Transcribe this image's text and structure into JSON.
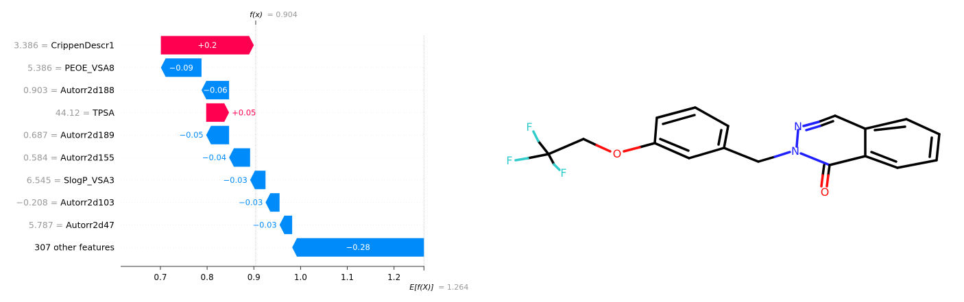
{
  "chart_data": {
    "type": "waterfall",
    "fx_label": "f(x)",
    "fx_value_text": "= 0.904",
    "fx": 0.904,
    "ex_label": "E[f(X)]",
    "ex_value_text": "= 1.264",
    "ex": 1.264,
    "xlim": [
      0.615,
      1.265
    ],
    "xticks": [
      {
        "value": 0.7,
        "label": "0.7"
      },
      {
        "value": 0.8,
        "label": "0.8"
      },
      {
        "value": 0.9,
        "label": "0.9"
      },
      {
        "value": 1.0,
        "label": "1.0"
      },
      {
        "value": 1.1,
        "label": "1.1"
      },
      {
        "value": 1.2,
        "label": "1.2"
      }
    ],
    "features": [
      {
        "value_text": "3.386 =",
        "name": "CrippenDescr1",
        "label": "+0.2",
        "contribution": 0.199,
        "label_inside": true
      },
      {
        "value_text": "5.386 =",
        "name": "PEOE_VSA8",
        "label": "−0.09",
        "contribution": -0.087,
        "label_inside": true
      },
      {
        "value_text": "0.903 =",
        "name": "Autorr2d188",
        "label": "−0.06",
        "contribution": -0.059,
        "label_inside": true
      },
      {
        "value_text": "44.12 =",
        "name": "TPSA",
        "label": "+0.05",
        "contribution": 0.049,
        "label_inside": false
      },
      {
        "value_text": "0.687 =",
        "name": "Autorr2d189",
        "label": "−0.05",
        "contribution": -0.049,
        "label_inside": false
      },
      {
        "value_text": "0.584 =",
        "name": "Autorr2d155",
        "label": "−0.04",
        "contribution": -0.045,
        "label_inside": false
      },
      {
        "value_text": "6.545 =",
        "name": "SlogP_VSA3",
        "label": "−0.03",
        "contribution": -0.033,
        "label_inside": false
      },
      {
        "value_text": "−0.208 =",
        "name": "Autorr2d103",
        "label": "−0.03",
        "contribution": -0.03,
        "label_inside": false
      },
      {
        "value_text": "5.787 =",
        "name": "Autorr2d47",
        "label": "−0.03",
        "contribution": -0.027,
        "label_inside": false
      },
      {
        "value_text": "",
        "name": "307 other features",
        "label": "−0.28",
        "contribution": -0.282,
        "label_inside": true
      }
    ],
    "colors": {
      "positive": "#ff0051",
      "negative": "#008bfb",
      "muted": "#999999",
      "text": "#000000"
    }
  },
  "molecule": {
    "atoms": [
      {
        "id": "F1",
        "label": "F",
        "color": "#33cccc"
      },
      {
        "id": "F2",
        "label": "F",
        "color": "#33cccc"
      },
      {
        "id": "F3",
        "label": "F",
        "color": "#33cccc"
      },
      {
        "id": "O1",
        "label": "O",
        "color": "#ff0d0d"
      },
      {
        "id": "N1",
        "label": "N",
        "color": "#2020ff"
      },
      {
        "id": "N2",
        "label": "N",
        "color": "#2020ff"
      },
      {
        "id": "O2",
        "label": "O",
        "color": "#ff0d0d"
      }
    ]
  }
}
